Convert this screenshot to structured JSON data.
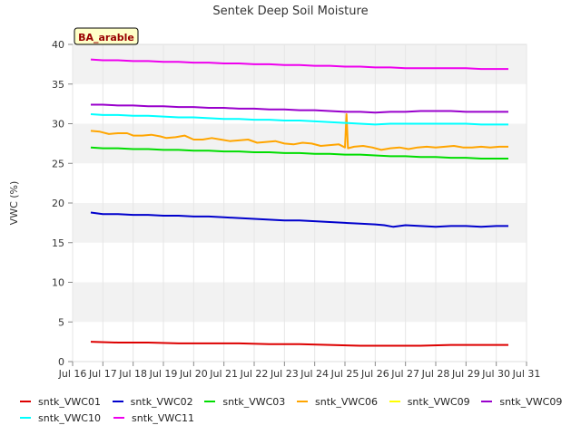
{
  "chart_data": {
    "type": "line",
    "title": "Sentek Deep Soil Moisture",
    "ylabel": "VWC (%)",
    "xlabel": "",
    "badge": "BA_arable",
    "ylim": [
      0,
      40
    ],
    "yticks": [
      0,
      5,
      10,
      15,
      20,
      25,
      30,
      35,
      40
    ],
    "xlim": [
      16,
      31
    ],
    "xticks": [
      {
        "v": 16,
        "label": "Jul 16"
      },
      {
        "v": 17,
        "label": "Jul 17"
      },
      {
        "v": 18,
        "label": "Jul 18"
      },
      {
        "v": 19,
        "label": "Jul 19"
      },
      {
        "v": 20,
        "label": "Jul 20"
      },
      {
        "v": 21,
        "label": "Jul 21"
      },
      {
        "v": 22,
        "label": "Jul 22"
      },
      {
        "v": 23,
        "label": "Jul 23"
      },
      {
        "v": 24,
        "label": "Jul 24"
      },
      {
        "v": 25,
        "label": "Jul 25"
      },
      {
        "v": 26,
        "label": "Jul 26"
      },
      {
        "v": 27,
        "label": "Jul 27"
      },
      {
        "v": 28,
        "label": "Jul 28"
      },
      {
        "v": 29,
        "label": "Jul 29"
      },
      {
        "v": 30,
        "label": "Jul 30"
      },
      {
        "v": 31,
        "label": "Jul 31"
      }
    ],
    "grid": true,
    "legend_position": "bottom",
    "series": [
      {
        "name": "sntk_VWC01",
        "color": "#dd0000",
        "x": [
          16.6,
          17.5,
          18.5,
          19.5,
          20.5,
          21.5,
          22.5,
          23.5,
          24.5,
          25.5,
          26.5,
          27.5,
          28.5,
          29.5,
          30.4
        ],
        "y": [
          2.5,
          2.4,
          2.4,
          2.3,
          2.3,
          2.3,
          2.2,
          2.2,
          2.1,
          2.0,
          2.0,
          2.0,
          2.1,
          2.1,
          2.1
        ]
      },
      {
        "name": "sntk_VWC02",
        "color": "#0000cc",
        "x": [
          16.6,
          17.0,
          17.5,
          18.0,
          18.5,
          19.0,
          19.5,
          20.0,
          20.5,
          21.0,
          21.5,
          22.0,
          22.5,
          23.0,
          23.5,
          24.0,
          24.5,
          25.0,
          25.5,
          26.0,
          26.3,
          26.6,
          27.0,
          27.5,
          28.0,
          28.5,
          29.0,
          29.5,
          30.0,
          30.4
        ],
        "y": [
          18.8,
          18.6,
          18.6,
          18.5,
          18.5,
          18.4,
          18.4,
          18.3,
          18.3,
          18.2,
          18.1,
          18.0,
          17.9,
          17.8,
          17.8,
          17.7,
          17.6,
          17.5,
          17.4,
          17.3,
          17.2,
          17.0,
          17.2,
          17.1,
          17.0,
          17.1,
          17.1,
          17.0,
          17.1,
          17.1
        ]
      },
      {
        "name": "sntk_VWC03",
        "color": "#00dd00",
        "x": [
          16.6,
          17.0,
          17.5,
          18.0,
          18.5,
          19.0,
          19.5,
          20.0,
          20.5,
          21.0,
          21.5,
          22.0,
          22.5,
          23.0,
          23.5,
          24.0,
          24.5,
          25.0,
          25.5,
          26.0,
          26.5,
          27.0,
          27.5,
          28.0,
          28.5,
          29.0,
          29.5,
          30.0,
          30.4
        ],
        "y": [
          27.0,
          26.9,
          26.9,
          26.8,
          26.8,
          26.7,
          26.7,
          26.6,
          26.6,
          26.5,
          26.5,
          26.4,
          26.4,
          26.3,
          26.3,
          26.2,
          26.2,
          26.1,
          26.1,
          26.0,
          25.9,
          25.9,
          25.8,
          25.8,
          25.7,
          25.7,
          25.6,
          25.6,
          25.6
        ]
      },
      {
        "name": "sntk_VWC06",
        "color": "#ffa500",
        "x": [
          16.6,
          16.9,
          17.2,
          17.5,
          17.8,
          18.0,
          18.3,
          18.6,
          18.9,
          19.1,
          19.4,
          19.7,
          20.0,
          20.3,
          20.6,
          20.9,
          21.2,
          21.5,
          21.8,
          22.1,
          22.4,
          22.7,
          23.0,
          23.3,
          23.6,
          23.9,
          24.2,
          24.5,
          24.8,
          25.0,
          25.05,
          25.1,
          25.3,
          25.6,
          25.9,
          26.2,
          26.5,
          26.8,
          27.1,
          27.4,
          27.7,
          28.0,
          28.3,
          28.6,
          28.9,
          29.2,
          29.5,
          29.8,
          30.1,
          30.4
        ],
        "y": [
          29.1,
          29.0,
          28.7,
          28.8,
          28.8,
          28.5,
          28.5,
          28.6,
          28.4,
          28.2,
          28.3,
          28.5,
          28.0,
          28.0,
          28.2,
          28.0,
          27.8,
          27.9,
          28.0,
          27.6,
          27.7,
          27.8,
          27.5,
          27.4,
          27.6,
          27.5,
          27.2,
          27.3,
          27.4,
          27.0,
          31.2,
          26.9,
          27.1,
          27.2,
          27.0,
          26.7,
          26.9,
          27.0,
          26.8,
          27.0,
          27.1,
          27.0,
          27.1,
          27.2,
          27.0,
          27.0,
          27.1,
          27.0,
          27.1,
          27.1
        ]
      },
      {
        "name": "sntk_VWC09",
        "color": "#ffff00",
        "x": [],
        "y": []
      },
      {
        "name": "sntk_VWC09",
        "color": "#9900cc",
        "x": [
          16.6,
          17.0,
          17.5,
          18.0,
          18.5,
          19.0,
          19.5,
          20.0,
          20.5,
          21.0,
          21.5,
          22.0,
          22.5,
          23.0,
          23.5,
          24.0,
          24.5,
          25.0,
          25.5,
          26.0,
          26.5,
          27.0,
          27.5,
          28.0,
          28.5,
          29.0,
          29.5,
          30.0,
          30.4
        ],
        "y": [
          32.4,
          32.4,
          32.3,
          32.3,
          32.2,
          32.2,
          32.1,
          32.1,
          32.0,
          32.0,
          31.9,
          31.9,
          31.8,
          31.8,
          31.7,
          31.7,
          31.6,
          31.5,
          31.5,
          31.4,
          31.5,
          31.5,
          31.6,
          31.6,
          31.6,
          31.5,
          31.5,
          31.5,
          31.5
        ]
      },
      {
        "name": "sntk_VWC10",
        "color": "#00ffff",
        "x": [
          16.6,
          17.0,
          17.5,
          18.0,
          18.5,
          19.0,
          19.5,
          20.0,
          20.5,
          21.0,
          21.5,
          22.0,
          22.5,
          23.0,
          23.5,
          24.0,
          24.5,
          25.0,
          25.5,
          26.0,
          26.5,
          27.0,
          27.5,
          28.0,
          28.5,
          29.0,
          29.5,
          30.0,
          30.4
        ],
        "y": [
          31.2,
          31.1,
          31.1,
          31.0,
          31.0,
          30.9,
          30.8,
          30.8,
          30.7,
          30.6,
          30.6,
          30.5,
          30.5,
          30.4,
          30.4,
          30.3,
          30.2,
          30.1,
          30.0,
          29.9,
          30.0,
          30.0,
          30.0,
          30.0,
          30.0,
          30.0,
          29.9,
          29.9,
          29.9
        ]
      },
      {
        "name": "sntk_VWC11",
        "color": "#ee00ee",
        "x": [
          16.6,
          17.0,
          17.5,
          18.0,
          18.5,
          19.0,
          19.5,
          20.0,
          20.5,
          21.0,
          21.5,
          22.0,
          22.5,
          23.0,
          23.5,
          24.0,
          24.5,
          25.0,
          25.5,
          26.0,
          26.5,
          27.0,
          27.5,
          28.0,
          28.5,
          29.0,
          29.5,
          30.0,
          30.4
        ],
        "y": [
          38.1,
          38.0,
          38.0,
          37.9,
          37.9,
          37.8,
          37.8,
          37.7,
          37.7,
          37.6,
          37.6,
          37.5,
          37.5,
          37.4,
          37.4,
          37.3,
          37.3,
          37.2,
          37.2,
          37.1,
          37.1,
          37.0,
          37.0,
          37.0,
          37.0,
          37.0,
          36.9,
          36.9,
          36.9
        ]
      }
    ]
  }
}
